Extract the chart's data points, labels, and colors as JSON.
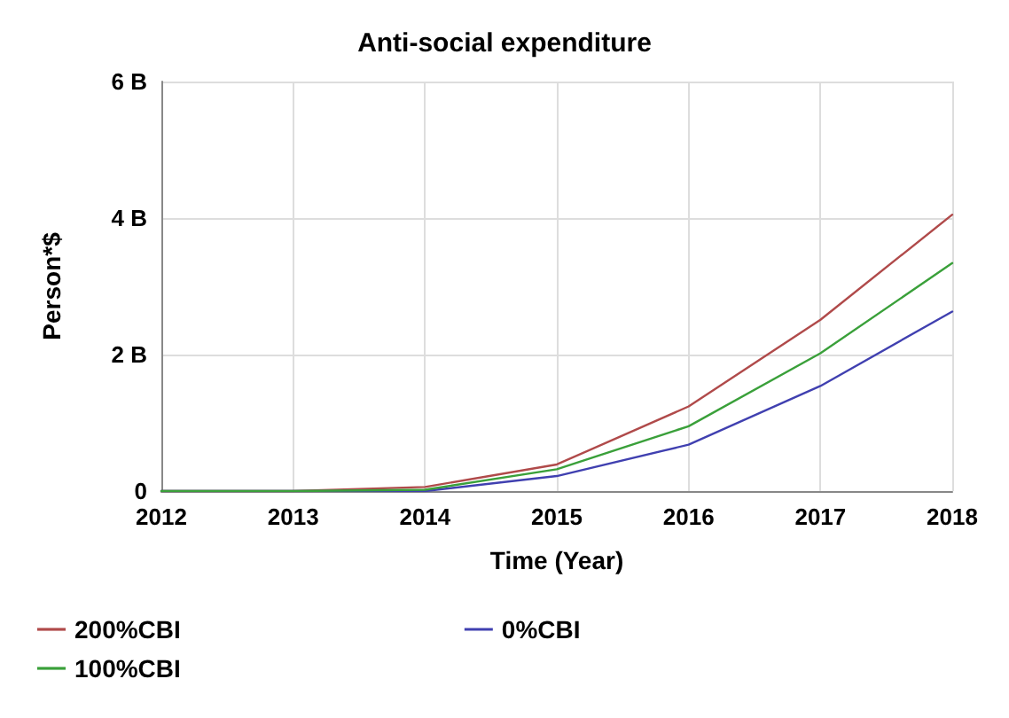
{
  "chart_data": {
    "type": "line",
    "title": "Anti-social expenditure",
    "xlabel": "Time (Year)",
    "ylabel": "Person*$",
    "x": [
      2012,
      2013,
      2014,
      2015,
      2016,
      2017,
      2018
    ],
    "series": [
      {
        "name": "200%CBI",
        "color": "#b04a4a",
        "values": [
          0,
          0,
          0.06,
          0.39,
          1.24,
          2.51,
          4.05
        ]
      },
      {
        "name": "0%CBI",
        "color": "#4040b0",
        "values": [
          0,
          0,
          0,
          0.22,
          0.68,
          1.54,
          2.63
        ]
      },
      {
        "name": "100%CBI",
        "color": "#3aa03a",
        "values": [
          0,
          0,
          0.02,
          0.32,
          0.95,
          2.02,
          3.34
        ]
      }
    ],
    "xlim": [
      2012,
      2018
    ],
    "xticks": [
      2012,
      2013,
      2014,
      2015,
      2016,
      2017,
      2018
    ],
    "ylim": [
      0,
      6
    ],
    "yticks": [
      0,
      {
        "value": 2,
        "label": "2 B"
      },
      {
        "value": 4,
        "label": "4 B"
      },
      {
        "value": 6,
        "label": "6 B"
      }
    ],
    "grid": true,
    "legend": "bottom",
    "marker": "none",
    "line_style": "solid"
  }
}
